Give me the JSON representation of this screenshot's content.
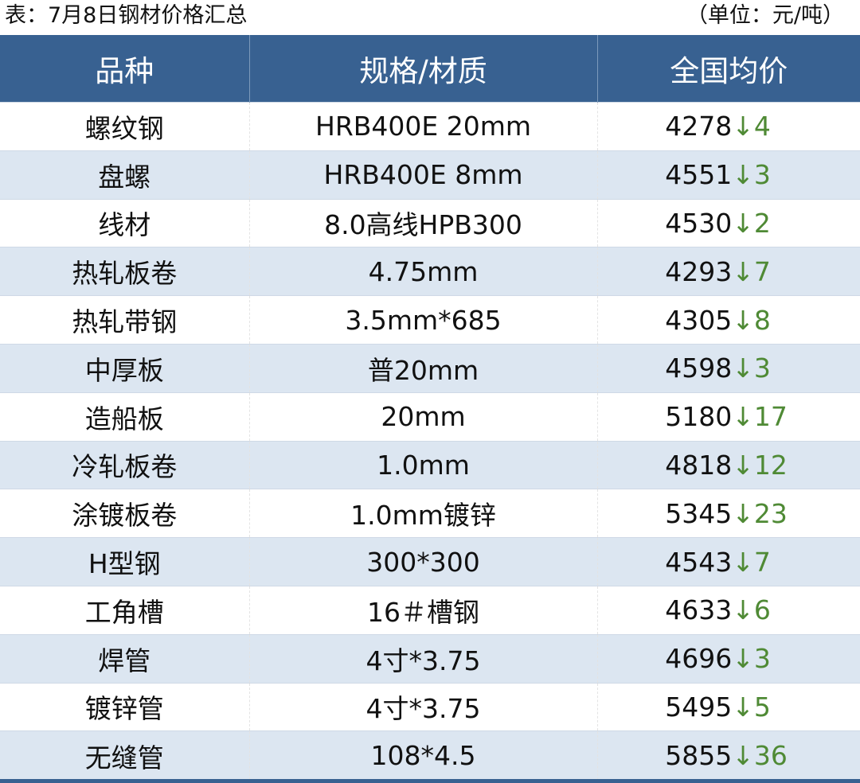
{
  "caption": "表：7月8日钢材价格汇总",
  "unit": "（单位：元/吨）",
  "colors": {
    "header": "#386191",
    "alt_row": "#dce6f1",
    "down": "#4f8a35"
  },
  "headers": [
    "品种",
    "规格/材质",
    "全国均价"
  ],
  "rows": [
    {
      "name": "螺纹钢",
      "spec": "HRB400E 20mm",
      "price": "4278",
      "change": "↓4"
    },
    {
      "name": "盘螺",
      "spec": "HRB400E 8mm",
      "price": "4551",
      "change": "↓3"
    },
    {
      "name": "线材",
      "spec": "8.0高线HPB300",
      "price": "4530",
      "change": "↓2"
    },
    {
      "name": "热轧板卷",
      "spec": "4.75mm",
      "price": "4293",
      "change": "↓7"
    },
    {
      "name": "热轧带钢",
      "spec": "3.5mm*685",
      "price": "4305",
      "change": "↓8"
    },
    {
      "name": "中厚板",
      "spec": "普20mm",
      "price": "4598",
      "change": "↓3"
    },
    {
      "name": "造船板",
      "spec": "20mm",
      "price": "5180",
      "change": "↓17"
    },
    {
      "name": "冷轧板卷",
      "spec": "1.0mm",
      "price": "4818",
      "change": "↓12"
    },
    {
      "name": "涂镀板卷",
      "spec": "1.0mm镀锌",
      "price": "5345",
      "change": "↓23"
    },
    {
      "name": "H型钢",
      "spec": "300*300",
      "price": "4543",
      "change": "↓7"
    },
    {
      "name": "工角槽",
      "spec": "16＃槽钢",
      "price": "4633",
      "change": "↓6"
    },
    {
      "name": "焊管",
      "spec": "4寸*3.75",
      "price": "4696",
      "change": "↓3"
    },
    {
      "name": "镀锌管",
      "spec": "4寸*3.75",
      "price": "5495",
      "change": "↓5"
    },
    {
      "name": "无缝管",
      "spec": "108*4.5",
      "price": "5855",
      "change": "↓36"
    }
  ]
}
